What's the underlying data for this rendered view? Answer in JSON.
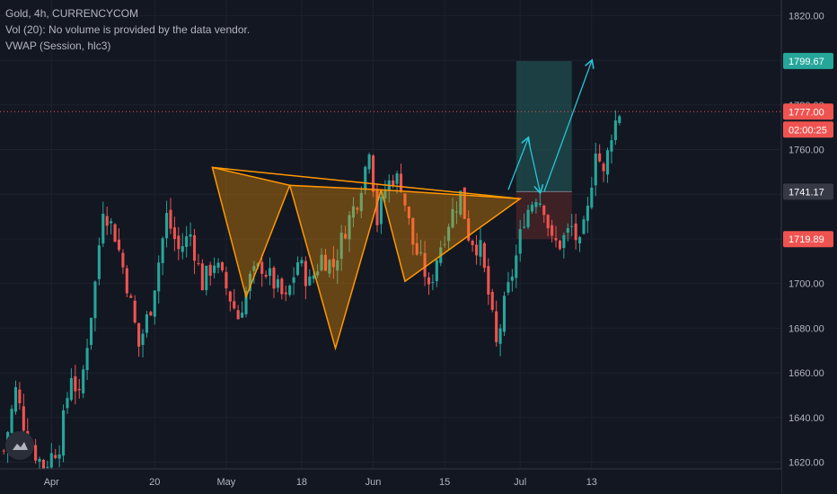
{
  "legend": {
    "line1": "Gold, 4h, CURRENCYCOM",
    "line2": "Vol (20): No volume is provided by the data vendor.",
    "line3": "VWAP (Session, hlc3)"
  },
  "colors": {
    "background": "#131722",
    "up": "#26a69a",
    "down": "#ef5350",
    "pattern": "#ff9800",
    "arrow": "#26c6da",
    "target_zone": "#1f4d4d",
    "stop_zone": "#4a2427",
    "price_line": "#ef5350"
  },
  "chart_data": {
    "type": "candlestick",
    "symbol": "Gold",
    "interval": "4h",
    "ylim": [
      1617,
      1827
    ],
    "y_ticks": [
      1620,
      1640,
      1660,
      1680,
      1700,
      1720,
      1740,
      1760,
      1780,
      1800,
      1820
    ],
    "y_tick_labels": [
      "1620.00",
      "1640.00",
      "1660.00",
      "1680.00",
      "1700.00",
      "1720.00",
      "1740.00",
      "1760.00",
      "1780.00",
      "1800.00",
      "1820.00"
    ],
    "x_ticks": [
      "Apr",
      "20",
      "May",
      "18",
      "Jun",
      "15",
      "Jul",
      "13"
    ],
    "grid": true,
    "price_labels": [
      {
        "value": 1799.67,
        "text": "1799.67",
        "color": "#26a69a"
      },
      {
        "value": 1777.0,
        "text": "1777.00",
        "color": "#ef5350"
      },
      {
        "value": 1741.17,
        "text": "1741.17",
        "color": "#363a45"
      },
      {
        "value": 1719.89,
        "text": "1719.89",
        "color": "#ef5350"
      }
    ],
    "countdown": "02:00:25",
    "last_price": 1777.0,
    "entry": 1741.17,
    "target": 1799.67,
    "stop": 1719.89,
    "close_path": [
      [
        0,
        1625
      ],
      [
        3,
        1652
      ],
      [
        6,
        1630
      ],
      [
        10,
        1618
      ],
      [
        14,
        1628
      ],
      [
        17,
        1660
      ],
      [
        19,
        1648
      ],
      [
        23,
        1700
      ],
      [
        25,
        1735
      ],
      [
        28,
        1722
      ],
      [
        31,
        1700
      ],
      [
        34,
        1672
      ],
      [
        37,
        1690
      ],
      [
        41,
        1730
      ],
      [
        44,
        1715
      ],
      [
        47,
        1722
      ],
      [
        50,
        1700
      ],
      [
        53,
        1710
      ],
      [
        56,
        1698
      ],
      [
        59,
        1685
      ],
      [
        62,
        1702
      ],
      [
        65,
        1708
      ],
      [
        68,
        1700
      ],
      [
        71,
        1692
      ],
      [
        74,
        1710
      ],
      [
        77,
        1700
      ],
      [
        80,
        1712
      ],
      [
        83,
        1708
      ],
      [
        86,
        1725
      ],
      [
        89,
        1738
      ],
      [
        91,
        1752
      ],
      [
        92,
        1762
      ],
      [
        94,
        1728
      ],
      [
        96,
        1742
      ],
      [
        98,
        1748
      ],
      [
        100,
        1745
      ],
      [
        103,
        1718
      ],
      [
        106,
        1705
      ],
      [
        107,
        1696
      ],
      [
        109,
        1712
      ],
      [
        112,
        1728
      ],
      [
        115,
        1740
      ],
      [
        117,
        1722
      ],
      [
        120,
        1715
      ],
      [
        122,
        1695
      ],
      [
        124,
        1672
      ],
      [
        126,
        1690
      ],
      [
        129,
        1712
      ],
      [
        131,
        1730
      ],
      [
        134,
        1740
      ],
      [
        136,
        1735
      ],
      [
        138,
        1718
      ],
      [
        140,
        1718
      ],
      [
        143,
        1725
      ],
      [
        145,
        1716
      ],
      [
        147,
        1732
      ],
      [
        149,
        1762
      ],
      [
        151,
        1748
      ],
      [
        153,
        1768
      ],
      [
        155,
        1777
      ]
    ],
    "pattern_points": [
      [
        52.5,
        1752
      ],
      [
        61,
        1694
      ],
      [
        72,
        1744
      ],
      [
        83.5,
        1671
      ],
      [
        95,
        1742
      ],
      [
        101,
        1701
      ],
      [
        130,
        1738
      ]
    ],
    "projection_arrows": [
      [
        [
          127,
          1742
        ],
        [
          132,
          1765
        ]
      ],
      [
        [
          132,
          1765
        ],
        [
          135,
          1741
        ]
      ],
      [
        [
          136,
          1741
        ],
        [
          148,
          1799.67
        ]
      ]
    ],
    "position_zone": {
      "x_start": 129,
      "x_end": 143
    }
  }
}
